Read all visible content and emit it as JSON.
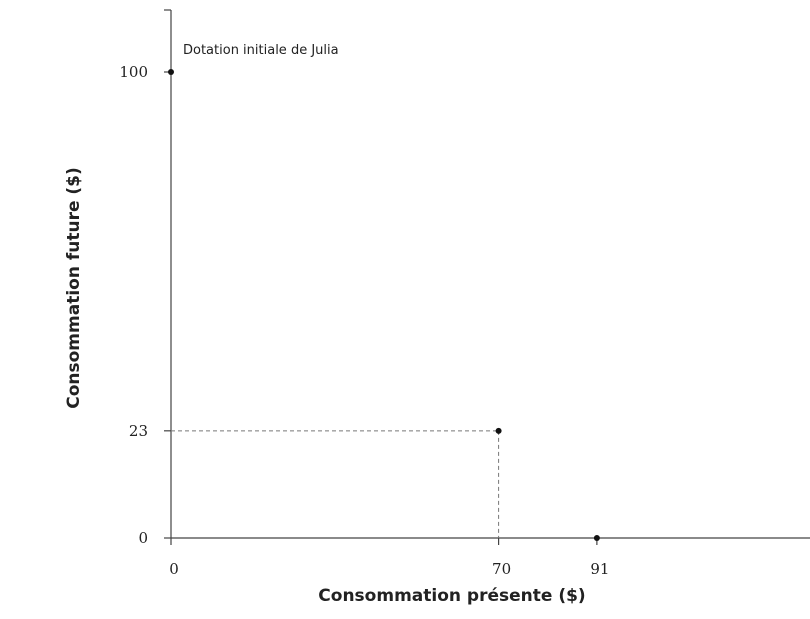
{
  "chart_data": {
    "type": "scatter",
    "title": "",
    "xlabel": "Consommation présente ($)",
    "ylabel": "Consommation future ($)",
    "xlim": [
      0,
      170
    ],
    "ylim": [
      0,
      118
    ],
    "xticks": [
      0,
      70,
      91
    ],
    "yticks": [
      0,
      23,
      100
    ],
    "xtick_labels": [
      "0",
      "70",
      "91"
    ],
    "ytick_labels": [
      "0",
      "23",
      "100"
    ],
    "grid": false,
    "points": [
      {
        "x": 0,
        "y": 100
      },
      {
        "x": 70,
        "y": 23
      },
      {
        "x": 91,
        "y": 0
      }
    ],
    "guides": [
      {
        "x": 70,
        "y": 23
      }
    ],
    "annotations": [
      {
        "text": "Dotation initiale de Julia",
        "x": 0,
        "y": 100
      }
    ],
    "colors": {
      "axis": "#444444",
      "point": "#111111",
      "guide": "#777777"
    }
  }
}
